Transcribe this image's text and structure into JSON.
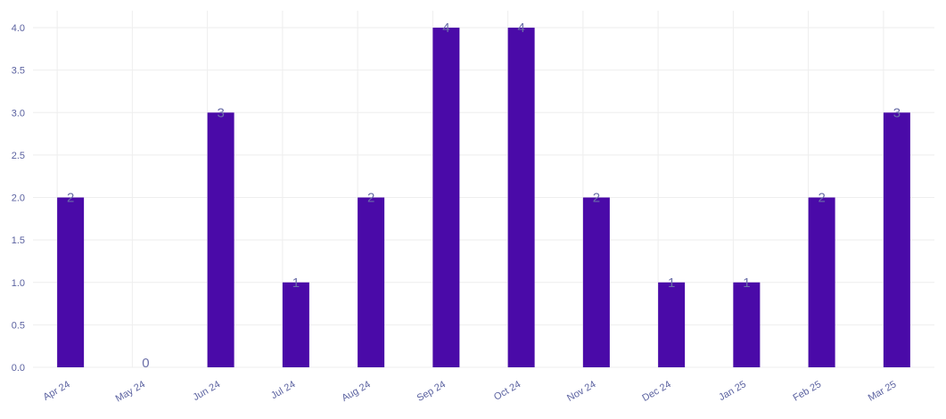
{
  "chart_data": {
    "type": "bar",
    "categories": [
      "Apr 24",
      "May 24",
      "Jun 24",
      "Jul 24",
      "Aug 24",
      "Sep 24",
      "Oct 24",
      "Nov 24",
      "Dec 24",
      "Jan 25",
      "Feb 25",
      "Mar 25"
    ],
    "values": [
      2,
      0,
      3,
      1,
      2,
      4,
      4,
      2,
      1,
      1,
      2,
      3
    ],
    "data_labels": [
      "2",
      "0",
      "3",
      "1",
      "2",
      "4",
      "4",
      "2",
      "1",
      "1",
      "2",
      "3"
    ],
    "y_ticks": [
      "0.0",
      "0.5",
      "1.0",
      "1.5",
      "2.0",
      "2.5",
      "3.0",
      "3.5",
      "4.0"
    ],
    "ylim": [
      0,
      4.2
    ],
    "grid": true,
    "bar_color": "#4a0aa8",
    "label_color": "#6b6fa8",
    "tick_color": "#5b62a0",
    "grid_color": "#eeeeee",
    "x_tick_rotation": -30
  }
}
